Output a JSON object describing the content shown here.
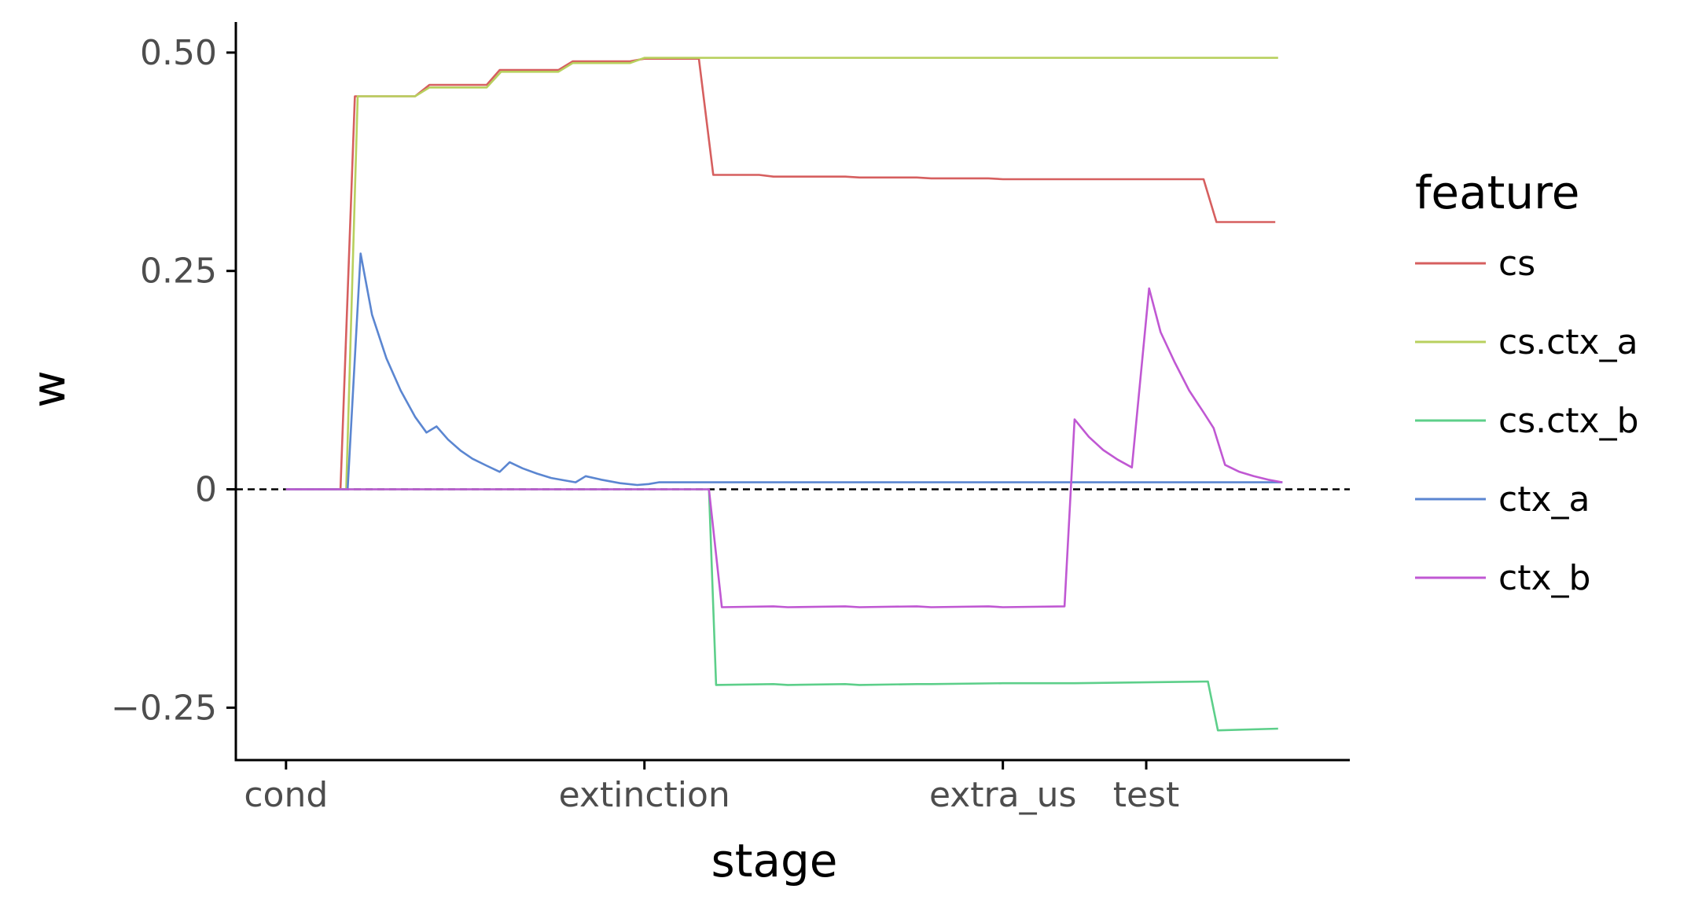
{
  "chart_data": {
    "type": "line",
    "xlabel": "stage",
    "ylabel": "w",
    "ylim": [
      -0.31,
      0.535
    ],
    "xlim": [
      -3.5,
      74.2
    ],
    "x_ticks": [
      {
        "label": "cond",
        "x": 0
      },
      {
        "label": "extinction",
        "x": 25
      },
      {
        "label": "extra_us",
        "x": 50
      },
      {
        "label": "test",
        "x": 60
      }
    ],
    "y_ticks": [
      {
        "label": "0.50",
        "value": 0.5
      },
      {
        "label": "0.25",
        "value": 0.25
      },
      {
        "label": "0",
        "value": 0
      },
      {
        "label": "−0.25",
        "value": -0.25
      }
    ],
    "reference_line": {
      "value": 0,
      "style": "dashed"
    },
    "legend": {
      "title": "feature",
      "placement": "right"
    },
    "grid": false,
    "series": [
      {
        "name": "cs",
        "color": "#d65f5f",
        "points": [
          [
            0,
            0
          ],
          [
            3.8,
            0
          ],
          [
            4.8,
            0.45
          ],
          [
            9,
            0.45
          ],
          [
            10,
            0.463
          ],
          [
            14,
            0.463
          ],
          [
            14.9,
            0.48
          ],
          [
            19,
            0.48
          ],
          [
            20,
            0.49
          ],
          [
            24,
            0.49
          ],
          [
            25,
            0.493
          ],
          [
            28.8,
            0.493
          ],
          [
            29.8,
            0.36
          ],
          [
            33,
            0.36
          ],
          [
            34,
            0.358
          ],
          [
            39,
            0.358
          ],
          [
            40,
            0.357
          ],
          [
            44,
            0.357
          ],
          [
            45,
            0.356
          ],
          [
            49,
            0.356
          ],
          [
            50,
            0.355
          ],
          [
            55,
            0.355
          ],
          [
            64,
            0.355
          ],
          [
            64.9,
            0.306
          ],
          [
            69,
            0.306
          ]
        ]
      },
      {
        "name": "cs.ctx_a",
        "color": "#b8d05e",
        "points": [
          [
            0,
            0
          ],
          [
            4.2,
            0
          ],
          [
            5,
            0.45
          ],
          [
            9,
            0.45
          ],
          [
            10,
            0.46
          ],
          [
            14,
            0.46
          ],
          [
            15,
            0.478
          ],
          [
            19,
            0.478
          ],
          [
            20,
            0.488
          ],
          [
            24,
            0.488
          ],
          [
            25,
            0.494
          ],
          [
            29,
            0.494
          ],
          [
            69.2,
            0.494
          ]
        ]
      },
      {
        "name": "cs.ctx_b",
        "color": "#5dcf8a",
        "points": [
          [
            0,
            0
          ],
          [
            29.5,
            0
          ],
          [
            30,
            -0.224
          ],
          [
            34,
            -0.223
          ],
          [
            35,
            -0.224
          ],
          [
            39,
            -0.223
          ],
          [
            40,
            -0.224
          ],
          [
            44,
            -0.223
          ],
          [
            45,
            -0.223
          ],
          [
            50,
            -0.222
          ],
          [
            55,
            -0.222
          ],
          [
            64.3,
            -0.22
          ],
          [
            65,
            -0.276
          ],
          [
            69.2,
            -0.274
          ]
        ]
      },
      {
        "name": "ctx_a",
        "color": "#5b86d1",
        "points": [
          [
            0,
            0
          ],
          [
            4.3,
            0
          ],
          [
            5.2,
            0.27
          ],
          [
            6,
            0.2
          ],
          [
            7,
            0.15
          ],
          [
            8,
            0.113
          ],
          [
            9,
            0.083
          ],
          [
            9.8,
            0.065
          ],
          [
            10.5,
            0.072
          ],
          [
            11.3,
            0.057
          ],
          [
            12.2,
            0.044
          ],
          [
            13,
            0.035
          ],
          [
            14,
            0.027
          ],
          [
            14.9,
            0.02
          ],
          [
            15.6,
            0.031
          ],
          [
            16.5,
            0.024
          ],
          [
            17.5,
            0.018
          ],
          [
            18.5,
            0.013
          ],
          [
            19.5,
            0.01
          ],
          [
            20.2,
            0.008
          ],
          [
            20.9,
            0.015
          ],
          [
            22,
            0.011
          ],
          [
            23.3,
            0.007
          ],
          [
            24.5,
            0.005
          ],
          [
            25.3,
            0.006
          ],
          [
            26,
            0.008
          ],
          [
            30,
            0.008
          ],
          [
            69.5,
            0.008
          ]
        ]
      },
      {
        "name": "ctx_b",
        "color": "#c058d3",
        "points": [
          [
            0,
            0
          ],
          [
            29.5,
            0
          ],
          [
            30.4,
            -0.135
          ],
          [
            34,
            -0.134
          ],
          [
            35,
            -0.135
          ],
          [
            39,
            -0.134
          ],
          [
            40,
            -0.135
          ],
          [
            44,
            -0.134
          ],
          [
            45,
            -0.135
          ],
          [
            49,
            -0.134
          ],
          [
            50,
            -0.135
          ],
          [
            54.3,
            -0.134
          ],
          [
            55,
            0.08
          ],
          [
            56,
            0.06
          ],
          [
            57,
            0.045
          ],
          [
            58,
            0.034
          ],
          [
            59,
            0.025
          ],
          [
            60.2,
            0.23
          ],
          [
            61,
            0.18
          ],
          [
            62,
            0.145
          ],
          [
            63,
            0.113
          ],
          [
            64,
            0.088
          ],
          [
            64.7,
            0.07
          ],
          [
            65.5,
            0.028
          ],
          [
            66.5,
            0.02
          ],
          [
            67.5,
            0.015
          ],
          [
            68.5,
            0.011
          ],
          [
            69.5,
            0.008
          ]
        ]
      }
    ]
  }
}
